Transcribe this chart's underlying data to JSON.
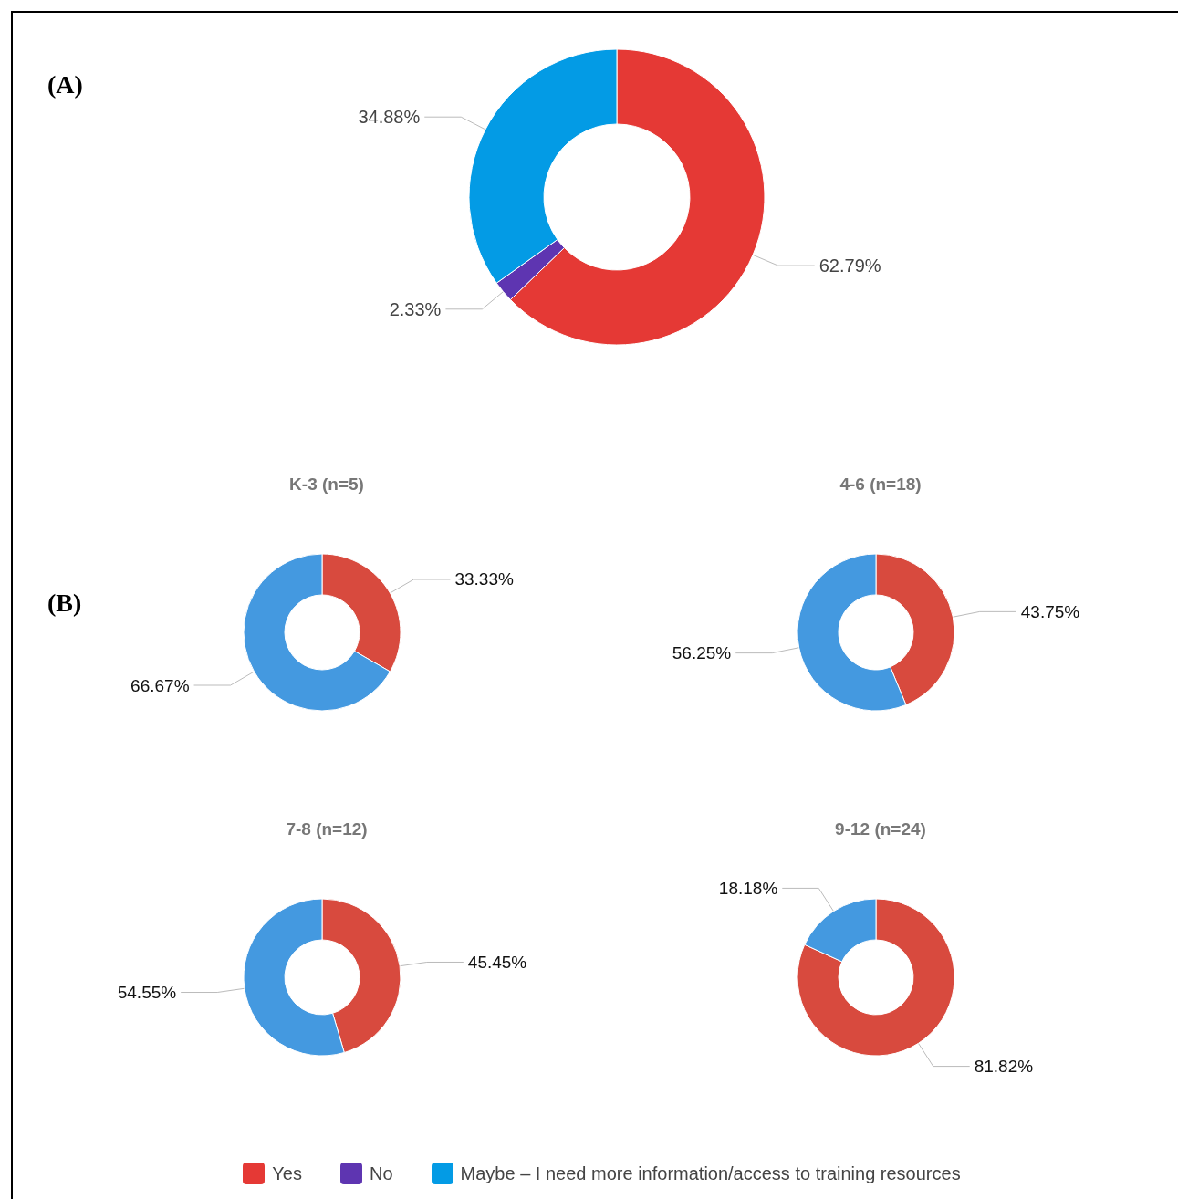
{
  "chart_data": [
    {
      "type": "donut",
      "categories": [
        "Yes",
        "No",
        "Maybe – I need more information/access to training resources"
      ],
      "values": [
        62.79,
        2.33,
        34.88
      ],
      "value_labels": [
        "62.79%",
        "2.33%",
        "34.88%"
      ],
      "colors": [
        "#e53935",
        "#5e35b1",
        "#039be5"
      ],
      "legend": "bottom",
      "annotations": [
        "(A)"
      ]
    },
    {
      "type": "donut",
      "title": "K-3 (n=5)",
      "categories": [
        null,
        null
      ],
      "values": [
        33.33,
        66.67
      ],
      "value_labels": [
        "33.33%",
        "66.67%"
      ],
      "colors": [
        "#d84a3e",
        "#4499e0"
      ],
      "annotations": [
        "(B)"
      ]
    },
    {
      "type": "donut",
      "title": "4-6 (n=18)",
      "categories": [
        null,
        null
      ],
      "values": [
        43.75,
        56.25
      ],
      "value_labels": [
        "43.75%",
        "56.25%"
      ],
      "colors": [
        "#d84a3e",
        "#4499e0"
      ]
    },
    {
      "type": "donut",
      "title": "7-8 (n=12)",
      "categories": [
        null,
        null
      ],
      "values": [
        45.45,
        54.55
      ],
      "value_labels": [
        "45.45%",
        "54.55%"
      ],
      "colors": [
        "#d84a3e",
        "#4499e0"
      ]
    },
    {
      "type": "donut",
      "title": "9-12 (n=24)",
      "categories": [
        null,
        null
      ],
      "values": [
        81.82,
        18.18
      ],
      "value_labels": [
        "81.82%",
        "18.18%"
      ],
      "colors": [
        "#d84a3e",
        "#4499e0"
      ]
    }
  ]
}
